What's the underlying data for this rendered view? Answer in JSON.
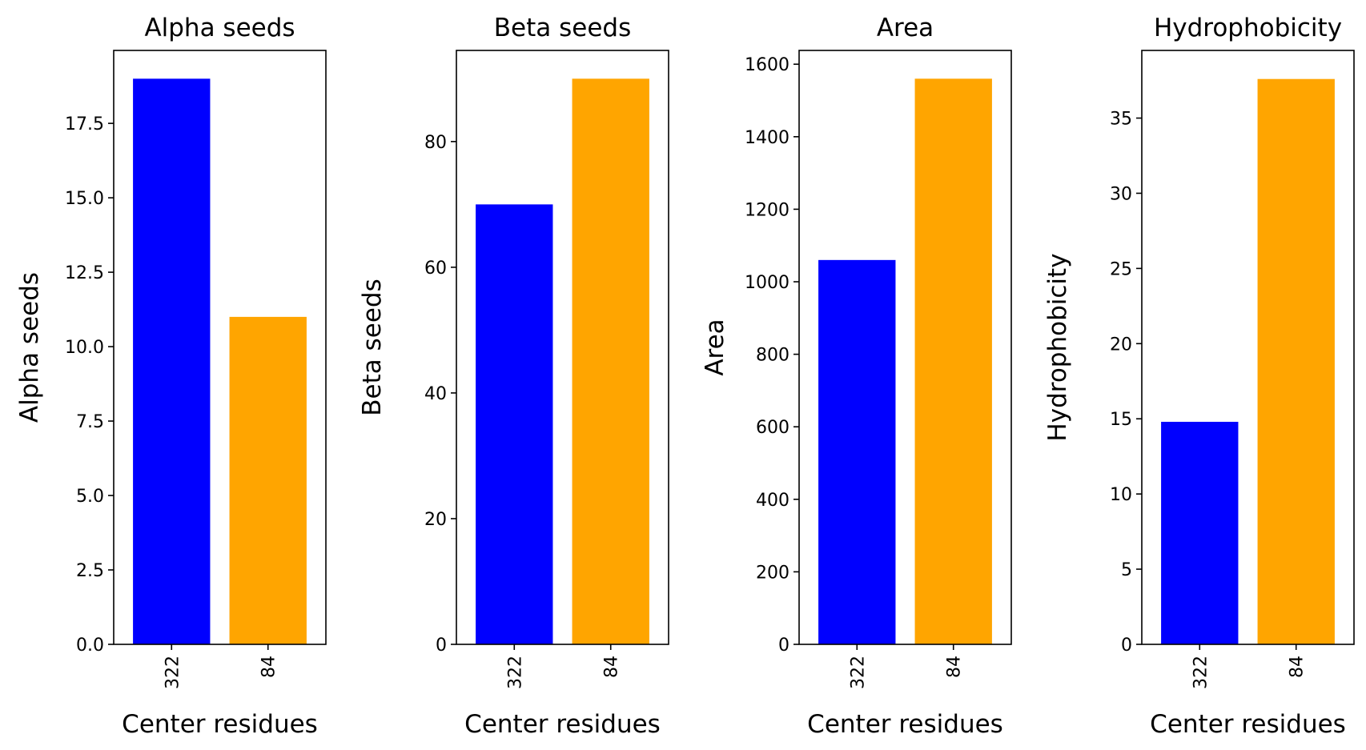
{
  "chart_data": [
    {
      "type": "bar",
      "title": "Alpha seeds",
      "xlabel": "Center residues",
      "ylabel": "Alpha seeds",
      "categories": [
        "322",
        "84"
      ],
      "values": [
        19,
        11
      ],
      "colors": [
        "#0000ff",
        "#ffa500"
      ],
      "ylim": [
        0,
        19.95
      ],
      "yticks": [
        0.0,
        2.5,
        5.0,
        7.5,
        10.0,
        12.5,
        15.0,
        17.5
      ],
      "ytick_labels": [
        "0.0",
        "2.5",
        "5.0",
        "7.5",
        "10.0",
        "12.5",
        "15.0",
        "17.5"
      ],
      "grid": false,
      "legend": "none"
    },
    {
      "type": "bar",
      "title": "Beta seeds",
      "xlabel": "Center residues",
      "ylabel": "Beta seeds",
      "categories": [
        "322",
        "84"
      ],
      "values": [
        70,
        90
      ],
      "colors": [
        "#0000ff",
        "#ffa500"
      ],
      "ylim": [
        0,
        94.5
      ],
      "yticks": [
        0,
        20,
        40,
        60,
        80
      ],
      "ytick_labels": [
        "0",
        "20",
        "40",
        "60",
        "80"
      ],
      "grid": false,
      "legend": "none"
    },
    {
      "type": "bar",
      "title": "Area",
      "xlabel": "Center residues",
      "ylabel": "Area",
      "categories": [
        "322",
        "84"
      ],
      "values": [
        1060,
        1560
      ],
      "colors": [
        "#0000ff",
        "#ffa500"
      ],
      "ylim": [
        0,
        1638
      ],
      "yticks": [
        0,
        200,
        400,
        600,
        800,
        1000,
        1200,
        1400,
        1600
      ],
      "ytick_labels": [
        "0",
        "200",
        "400",
        "600",
        "800",
        "1000",
        "1200",
        "1400",
        "1600"
      ],
      "grid": false,
      "legend": "none"
    },
    {
      "type": "bar",
      "title": "Hydrophobicity",
      "xlabel": "Center residues",
      "ylabel": "Hydrophobicity",
      "categories": [
        "322",
        "84"
      ],
      "values": [
        14.8,
        37.6
      ],
      "colors": [
        "#0000ff",
        "#ffa500"
      ],
      "ylim": [
        0,
        39.5
      ],
      "yticks": [
        0,
        5,
        10,
        15,
        20,
        25,
        30,
        35
      ],
      "ytick_labels": [
        "0",
        "5",
        "10",
        "15",
        "20",
        "25",
        "30",
        "35"
      ],
      "grid": false,
      "legend": "none"
    }
  ]
}
